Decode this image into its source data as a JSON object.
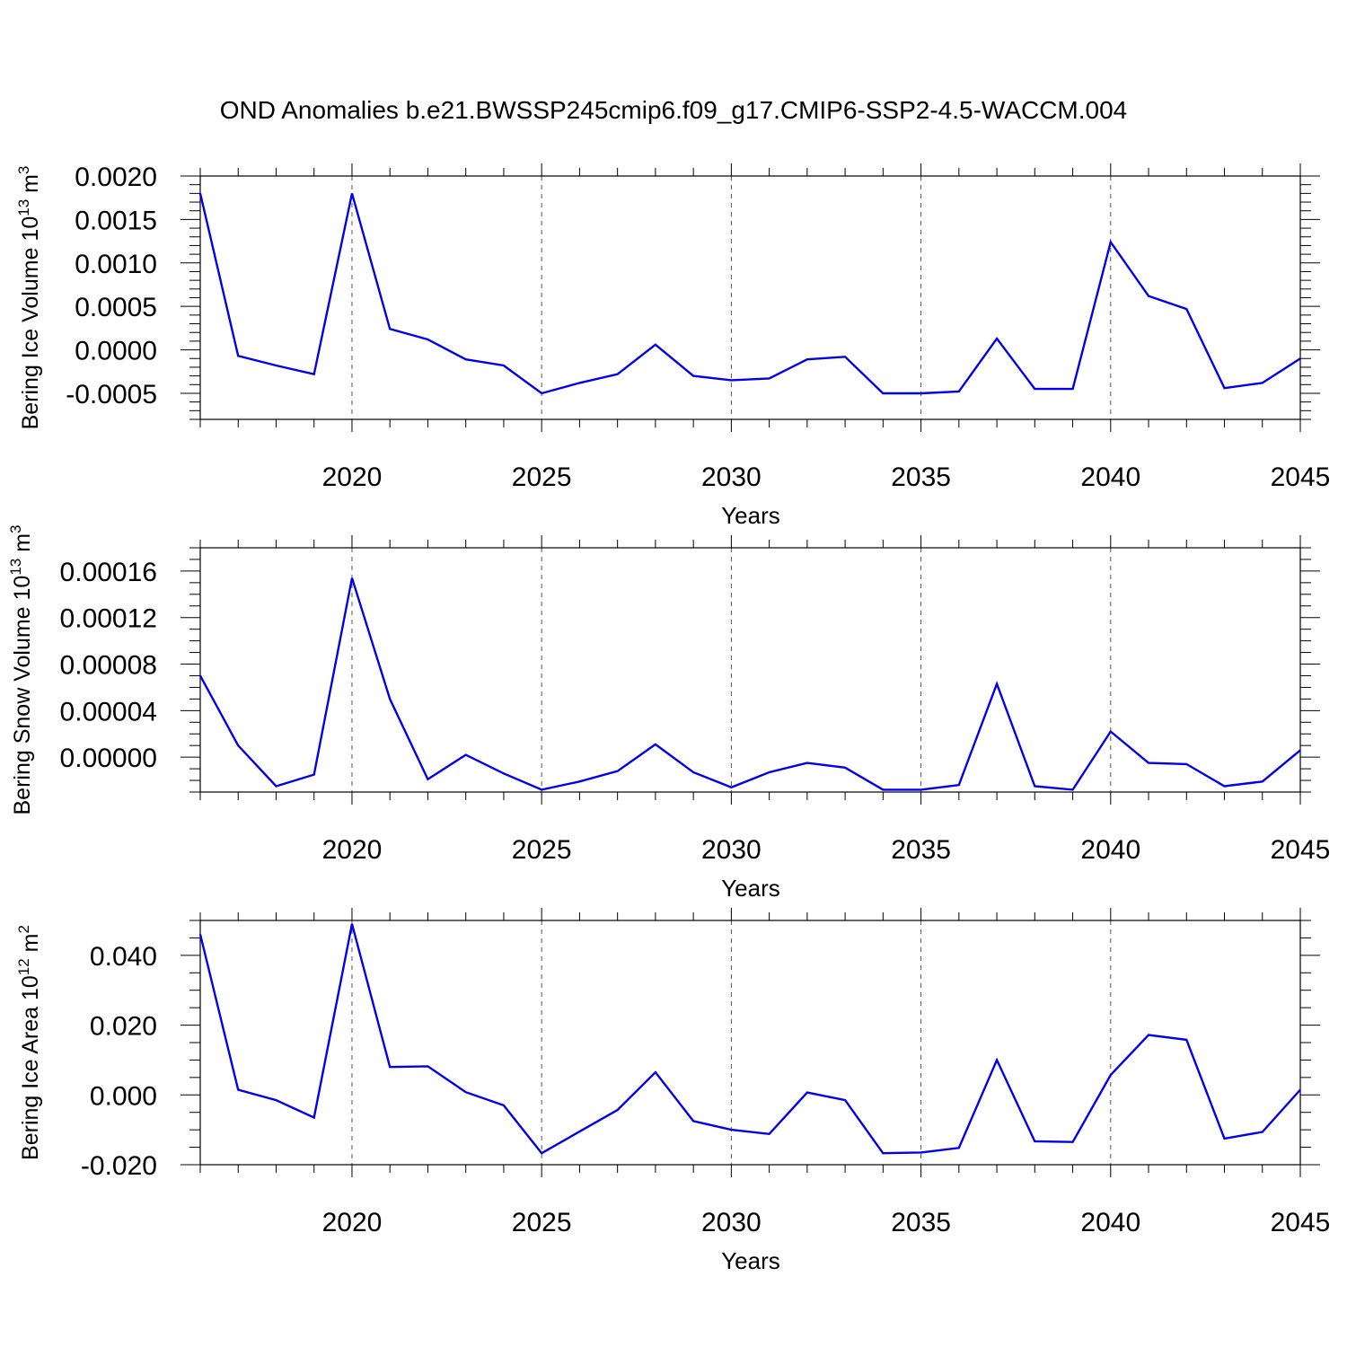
{
  "title": "OND Anomalies b.e21.BWSSP245cmip6.f09_g17.CMIP6-SSP2-4.5-WACCM.004",
  "line_color": "#0000ee",
  "chart_data": [
    {
      "type": "line",
      "ylabel_main": "Bering Ice Volume 10",
      "ylabel_exp": "13",
      "ylabel_unit": " m",
      "ylabel_unit_exp": "3",
      "xlabel": "Years",
      "xlim": [
        2016,
        2045
      ],
      "ylim": [
        -0.0008,
        0.002
      ],
      "yticks": [
        -0.0005,
        0.0,
        0.0005,
        0.001,
        0.0015,
        0.002
      ],
      "ytick_labels": [
        "-0.0005",
        "0.0000",
        "0.0005",
        "0.0010",
        "0.0015",
        "0.0020"
      ],
      "yminor_step": 0.0001,
      "xticks": [
        2020,
        2025,
        2030,
        2035,
        2040,
        2045
      ],
      "xtick_labels": [
        "2020",
        "2025",
        "2030",
        "2035",
        "2040",
        "2045"
      ],
      "x": [
        2016,
        2017,
        2018,
        2019,
        2020,
        2021,
        2022,
        2023,
        2024,
        2025,
        2026,
        2027,
        2028,
        2029,
        2030,
        2031,
        2032,
        2033,
        2034,
        2035,
        2036,
        2037,
        2038,
        2039,
        2040,
        2041,
        2042,
        2043,
        2044,
        2045
      ],
      "series": [
        {
          "name": "Bering Ice Volume",
          "values": [
            0.0018,
            -7e-05,
            -0.00018,
            -0.00028,
            0.0018,
            0.00024,
            0.00012,
            -0.00011,
            -0.00018,
            -0.0005,
            -0.00038,
            -0.00028,
            6e-05,
            -0.0003,
            -0.00035,
            -0.00033,
            -0.00011,
            -8e-05,
            -0.0005,
            -0.0005,
            -0.00048,
            0.00013,
            -0.00045,
            -0.00045,
            0.00124,
            0.00062,
            0.00047,
            -0.00044,
            -0.00038,
            -0.0001
          ]
        }
      ]
    },
    {
      "type": "line",
      "ylabel_main": "Bering Snow Volume 10",
      "ylabel_exp": "13",
      "ylabel_unit": " m",
      "ylabel_unit_exp": "3",
      "xlabel": "Years",
      "xlim": [
        2016,
        2045
      ],
      "ylim": [
        -3e-05,
        0.00018
      ],
      "yticks": [
        0.0,
        4e-05,
        8e-05,
        0.00012,
        0.00016
      ],
      "ytick_labels": [
        "0.00000",
        "0.00004",
        "0.00008",
        "0.00012",
        "0.00016"
      ],
      "yminor_step": 1e-05,
      "xticks": [
        2020,
        2025,
        2030,
        2035,
        2040,
        2045
      ],
      "xtick_labels": [
        "2020",
        "2025",
        "2030",
        "2035",
        "2040",
        "2045"
      ],
      "x": [
        2016,
        2017,
        2018,
        2019,
        2020,
        2021,
        2022,
        2023,
        2024,
        2025,
        2026,
        2027,
        2028,
        2029,
        2030,
        2031,
        2032,
        2033,
        2034,
        2035,
        2036,
        2037,
        2038,
        2039,
        2040,
        2041,
        2042,
        2043,
        2044,
        2045
      ],
      "series": [
        {
          "name": "Bering Snow Volume",
          "values": [
            7e-05,
            1e-05,
            -2.5e-05,
            -1.5e-05,
            0.000154,
            5e-05,
            -1.9e-05,
            2e-06,
            -1.4e-05,
            -2.8e-05,
            -2.1e-05,
            -1.2e-05,
            1.1e-05,
            -1.3e-05,
            -2.6e-05,
            -1.3e-05,
            -5e-06,
            -9e-06,
            -2.8e-05,
            -2.8e-05,
            -2.4e-05,
            6.3e-05,
            -2.5e-05,
            -2.8e-05,
            2.2e-05,
            -5e-06,
            -6e-06,
            -2.5e-05,
            -2.1e-05,
            6e-06
          ]
        }
      ]
    },
    {
      "type": "line",
      "ylabel_main": "Bering Ice Area 10",
      "ylabel_exp": "12",
      "ylabel_unit": " m",
      "ylabel_unit_exp": "2",
      "xlabel": "Years",
      "xlim": [
        2016,
        2045
      ],
      "ylim": [
        -0.02,
        0.05
      ],
      "yticks": [
        -0.02,
        0.0,
        0.02,
        0.04
      ],
      "ytick_labels": [
        "-0.020",
        "0.000",
        "0.020",
        "0.040"
      ],
      "yminor_step": 0.005,
      "xticks": [
        2020,
        2025,
        2030,
        2035,
        2040,
        2045
      ],
      "xtick_labels": [
        "2020",
        "2025",
        "2030",
        "2035",
        "2040",
        "2045"
      ],
      "x": [
        2016,
        2017,
        2018,
        2019,
        2020,
        2021,
        2022,
        2023,
        2024,
        2025,
        2026,
        2027,
        2028,
        2029,
        2030,
        2031,
        2032,
        2033,
        2034,
        2035,
        2036,
        2037,
        2038,
        2039,
        2040,
        2041,
        2042,
        2043,
        2044,
        2045
      ],
      "series": [
        {
          "name": "Bering Ice Area",
          "values": [
            0.046,
            0.0015,
            -0.0015,
            -0.0065,
            0.049,
            0.008,
            0.0082,
            0.0008,
            -0.003,
            -0.0167,
            -0.0105,
            -0.0043,
            0.0065,
            -0.0075,
            -0.01,
            -0.0112,
            0.0007,
            -0.0015,
            -0.0167,
            -0.0165,
            -0.0152,
            0.01,
            -0.0133,
            -0.0135,
            0.0057,
            0.0172,
            0.0158,
            -0.0125,
            -0.0106,
            0.0015
          ]
        }
      ]
    }
  ]
}
